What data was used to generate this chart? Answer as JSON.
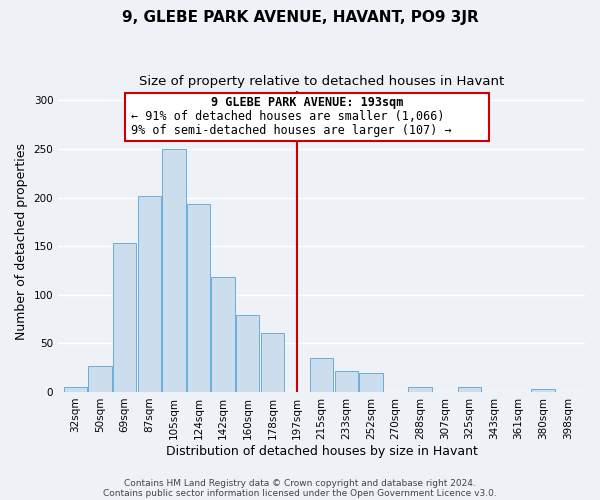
{
  "title": "9, GLEBE PARK AVENUE, HAVANT, PO9 3JR",
  "subtitle": "Size of property relative to detached houses in Havant",
  "xlabel": "Distribution of detached houses by size in Havant",
  "ylabel": "Number of detached properties",
  "bar_labels": [
    "32sqm",
    "50sqm",
    "69sqm",
    "87sqm",
    "105sqm",
    "124sqm",
    "142sqm",
    "160sqm",
    "178sqm",
    "197sqm",
    "215sqm",
    "233sqm",
    "252sqm",
    "270sqm",
    "288sqm",
    "307sqm",
    "325sqm",
    "343sqm",
    "361sqm",
    "380sqm",
    "398sqm"
  ],
  "bar_values": [
    5,
    27,
    153,
    202,
    250,
    193,
    118,
    79,
    61,
    0,
    35,
    22,
    19,
    0,
    5,
    0,
    5,
    0,
    0,
    3,
    0
  ],
  "bar_color": "#ccdded",
  "bar_edge_color": "#6aaed6",
  "vline_index": 9,
  "annotation_text_line1": "9 GLEBE PARK AVENUE: 193sqm",
  "annotation_text_line2": "← 91% of detached houses are smaller (1,066)",
  "annotation_text_line3": "9% of semi-detached houses are larger (107) →",
  "annotation_box_edge_color": "#cc0000",
  "vline_color": "#cc0000",
  "ylim": [
    0,
    310
  ],
  "yticks": [
    0,
    50,
    100,
    150,
    200,
    250,
    300
  ],
  "bg_color": "#eef2f7",
  "grid_color": "#ffffff",
  "title_fontsize": 11,
  "subtitle_fontsize": 9.5,
  "axis_label_fontsize": 9,
  "tick_fontsize": 7.5,
  "annotation_fontsize": 8.5,
  "footer_fontsize": 6.5
}
